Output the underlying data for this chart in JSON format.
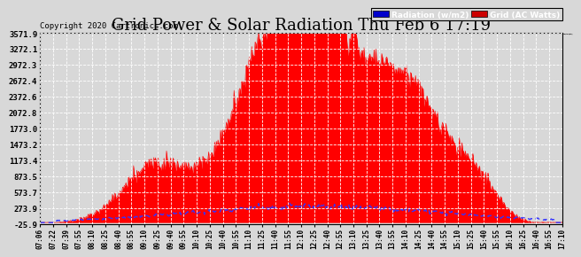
{
  "title": "Grid Power & Solar Radiation Thu Feb 6 17:19",
  "copyright": "Copyright 2020 Cartronics.com",
  "legend_labels": [
    "Radiation (w/m2)",
    "Grid (AC Watts)"
  ],
  "legend_bg_colors": [
    "#0000cc",
    "#cc0000"
  ],
  "bg_color": "#d8d8d8",
  "plot_bg_color": "#d8d8d8",
  "yticks": [
    -25.9,
    273.9,
    573.7,
    873.5,
    1173.4,
    1473.2,
    1773.0,
    2072.8,
    2372.6,
    2672.4,
    2972.3,
    3272.1,
    3571.9
  ],
  "ylim": [
    -25.9,
    3571.9
  ],
  "grid_color": "#ffffff",
  "fill_color": "#ff0000",
  "line_color": "#3333ff",
  "title_fontsize": 13,
  "xtick_labels": [
    "07:06",
    "07:22",
    "07:39",
    "07:55",
    "08:10",
    "08:25",
    "08:40",
    "08:55",
    "09:10",
    "09:25",
    "09:40",
    "09:55",
    "10:10",
    "10:25",
    "10:40",
    "10:55",
    "11:10",
    "11:25",
    "11:40",
    "11:55",
    "12:10",
    "12:25",
    "12:40",
    "12:55",
    "13:10",
    "13:25",
    "13:40",
    "13:55",
    "14:10",
    "14:25",
    "14:40",
    "14:55",
    "15:10",
    "15:25",
    "15:40",
    "15:55",
    "16:10",
    "16:25",
    "16:40",
    "16:55",
    "17:10"
  ]
}
